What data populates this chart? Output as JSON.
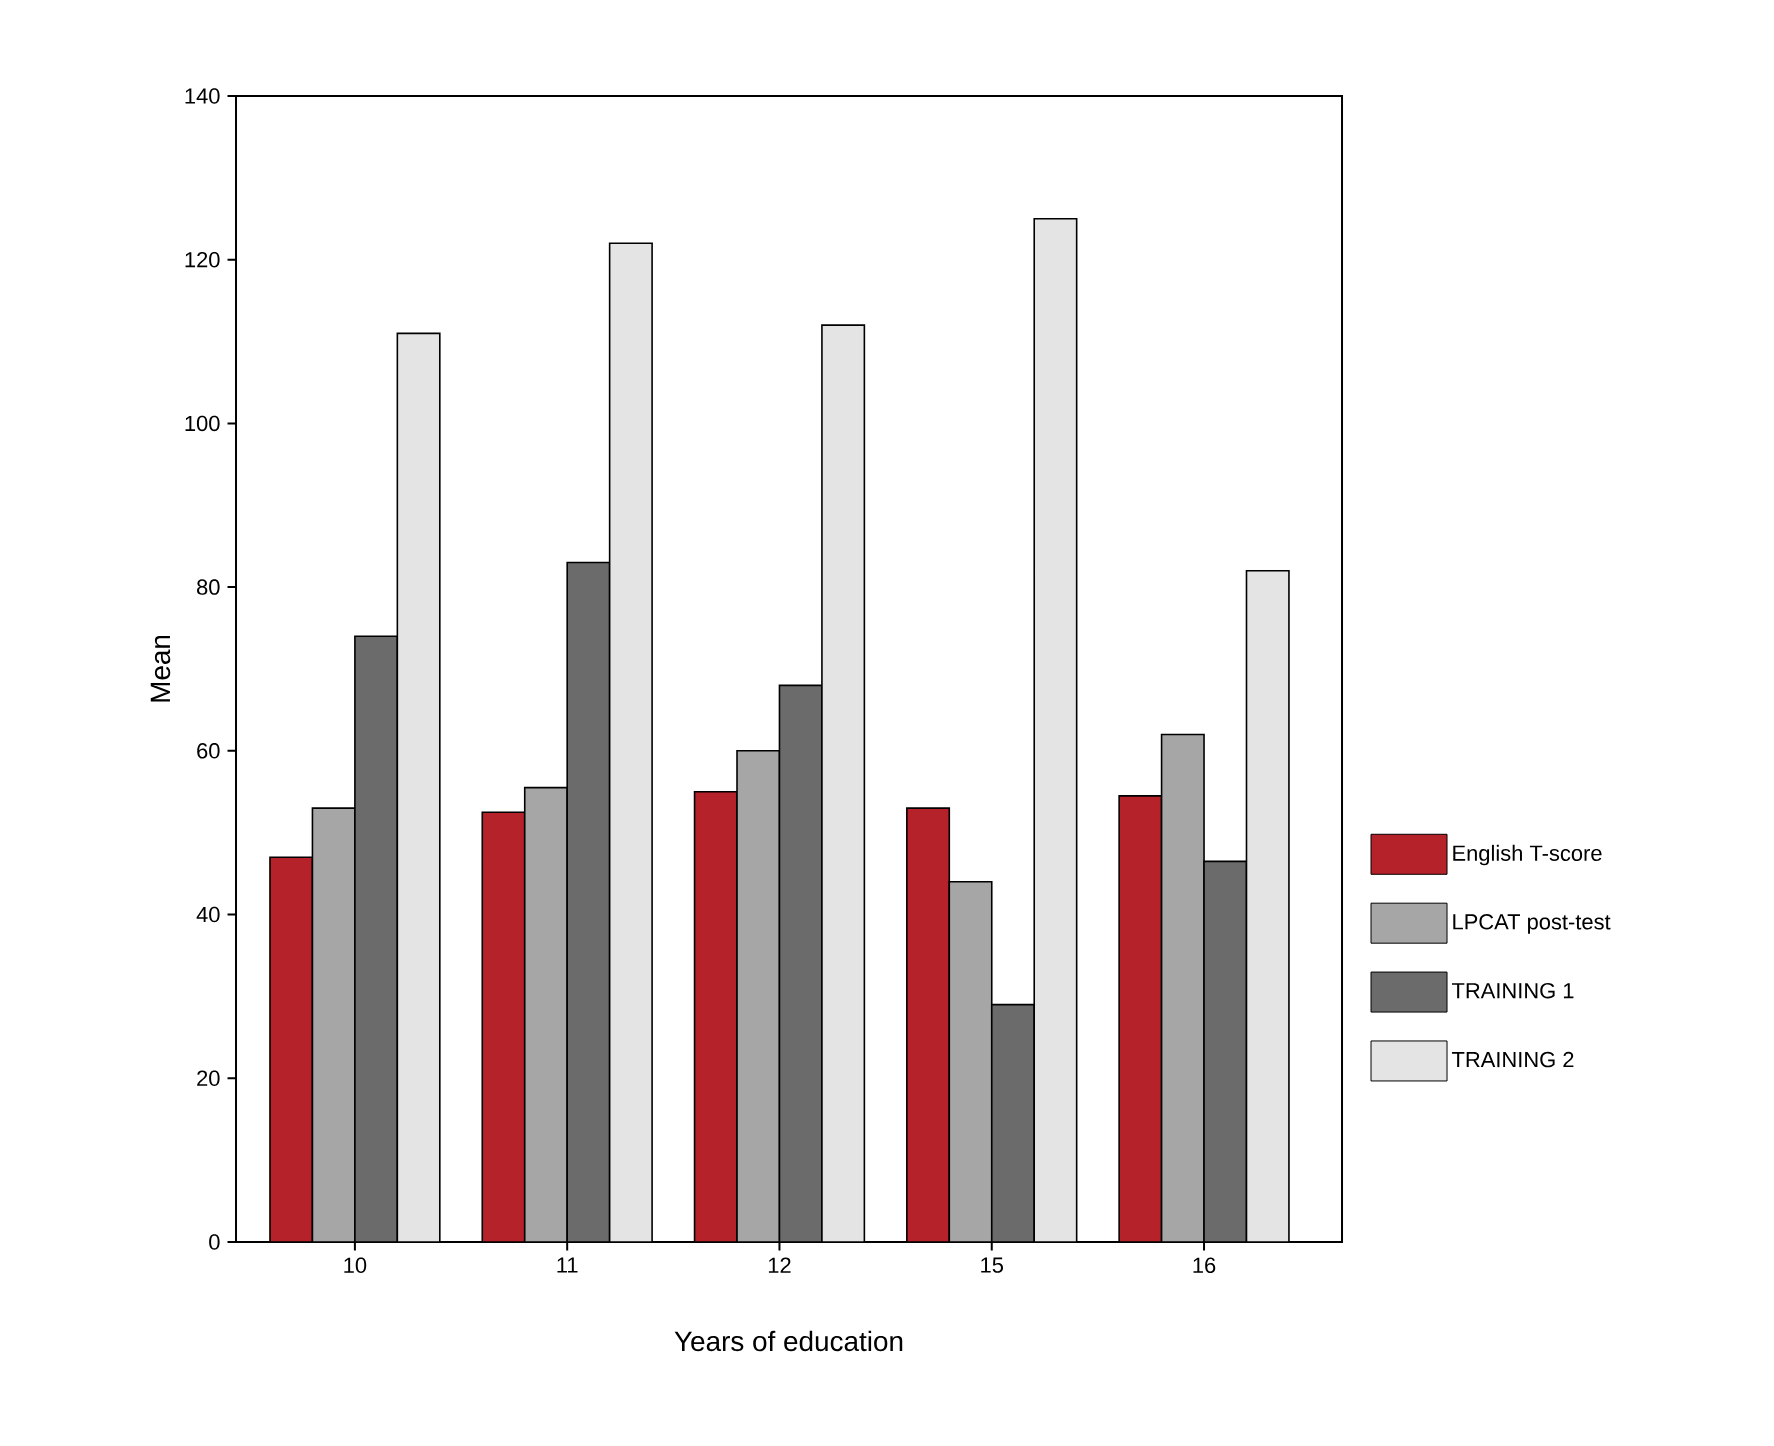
{
  "chart_data": {
    "type": "bar",
    "xlabel": "Years of education",
    "ylabel": "Mean",
    "categories": [
      "10",
      "11",
      "12",
      "15",
      "16"
    ],
    "series": [
      {
        "name": "English T-score",
        "color": "#b5222a",
        "values": [
          47,
          52.5,
          55,
          53,
          54.5
        ]
      },
      {
        "name": "LPCAT post-test",
        "color": "#a6a6a6",
        "values": [
          53,
          55.5,
          60,
          44,
          62
        ]
      },
      {
        "name": "TRAINING 1",
        "color": "#6b6b6b",
        "values": [
          74,
          83,
          68,
          29,
          46.5
        ]
      },
      {
        "name": "TRAINING 2",
        "color": "#e4e4e4",
        "values": [
          111,
          122,
          112,
          125,
          82
        ]
      }
    ],
    "ylim": [
      0,
      140
    ],
    "yticks": [
      0,
      20,
      40,
      60,
      80,
      100,
      120,
      140
    ],
    "grid": false,
    "legend": "right"
  }
}
